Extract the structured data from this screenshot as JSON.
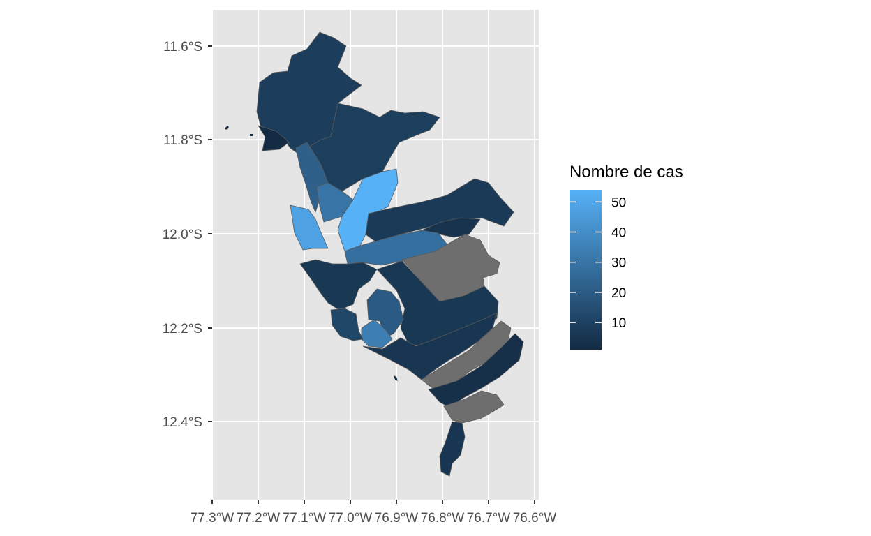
{
  "chart_data": {
    "type": "choropleth",
    "title": "",
    "xlabel": "",
    "ylabel": "",
    "x_ticks": [
      "77.3°W",
      "77.2°W",
      "77.1°W",
      "77.0°W",
      "76.9°W",
      "76.8°W",
      "76.7°W",
      "76.6°W"
    ],
    "y_ticks": [
      "11.6°S",
      "11.8°S",
      "12.0°S",
      "12.2°S",
      "12.4°S"
    ],
    "grid": true,
    "legend": {
      "title": "Nombre de cas",
      "position": "right",
      "labels": [
        "50",
        "40",
        "30",
        "20",
        "10"
      ],
      "min_value": 1,
      "max_value": 54,
      "low_color": "#132B43",
      "high_color": "#56B1F7",
      "na_color": "#6e6e6e"
    },
    "districts": [
      {
        "id": "north-large",
        "value": 8
      },
      {
        "id": "north-east",
        "value": 9
      },
      {
        "id": "northwest-tip",
        "value": 1
      },
      {
        "id": "west-coast-strip",
        "value": 22
      },
      {
        "id": "inner-west",
        "value": 30
      },
      {
        "id": "center-bright",
        "value": 54
      },
      {
        "id": "west-bright",
        "value": 48
      },
      {
        "id": "east-upper",
        "value": 7
      },
      {
        "id": "east-strip",
        "value": 4
      },
      {
        "id": "central-band",
        "value": 28
      },
      {
        "id": "east-gray",
        "value": null
      },
      {
        "id": "south-center-large",
        "value": 6
      },
      {
        "id": "south-east",
        "value": 5
      },
      {
        "id": "gray-band",
        "value": null
      },
      {
        "id": "south-east-band",
        "value": 3
      },
      {
        "id": "south-gray",
        "value": null
      },
      {
        "id": "south-tip",
        "value": 5
      },
      {
        "id": "south-center-mid",
        "value": 20
      },
      {
        "id": "south-center-light",
        "value": 34
      },
      {
        "id": "coast-left",
        "value": 12
      },
      {
        "id": "urban-core",
        "value": 6
      }
    ]
  }
}
